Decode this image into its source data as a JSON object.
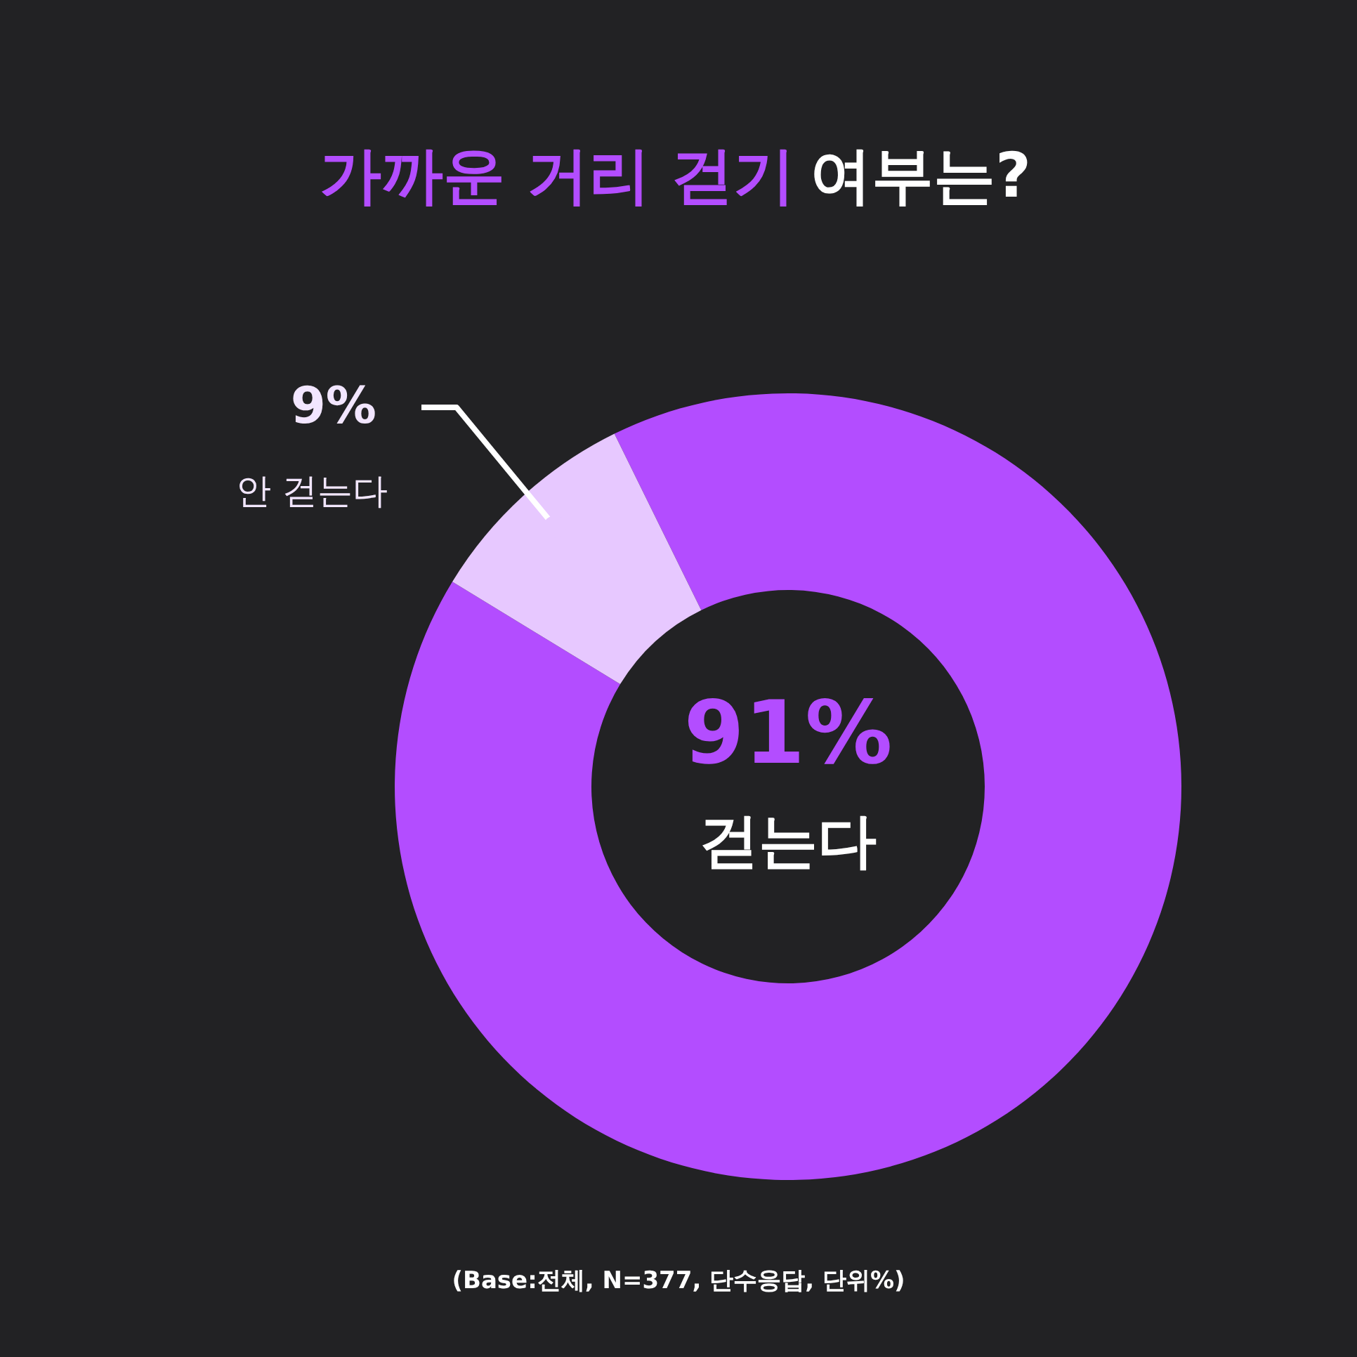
{
  "chart_data": {
    "type": "donut",
    "title": "가까운 거리 걷기 여부는?",
    "categories": [
      "걷는다",
      "안 걷는다"
    ],
    "values": [
      91,
      9
    ],
    "colors": [
      "#b34dff",
      "#e7c8ff"
    ],
    "value_labels": [
      "91%",
      "9%"
    ],
    "annotations": [
      "(Base:전체, N=377, 단수응답, 단위%)"
    ]
  }
}
